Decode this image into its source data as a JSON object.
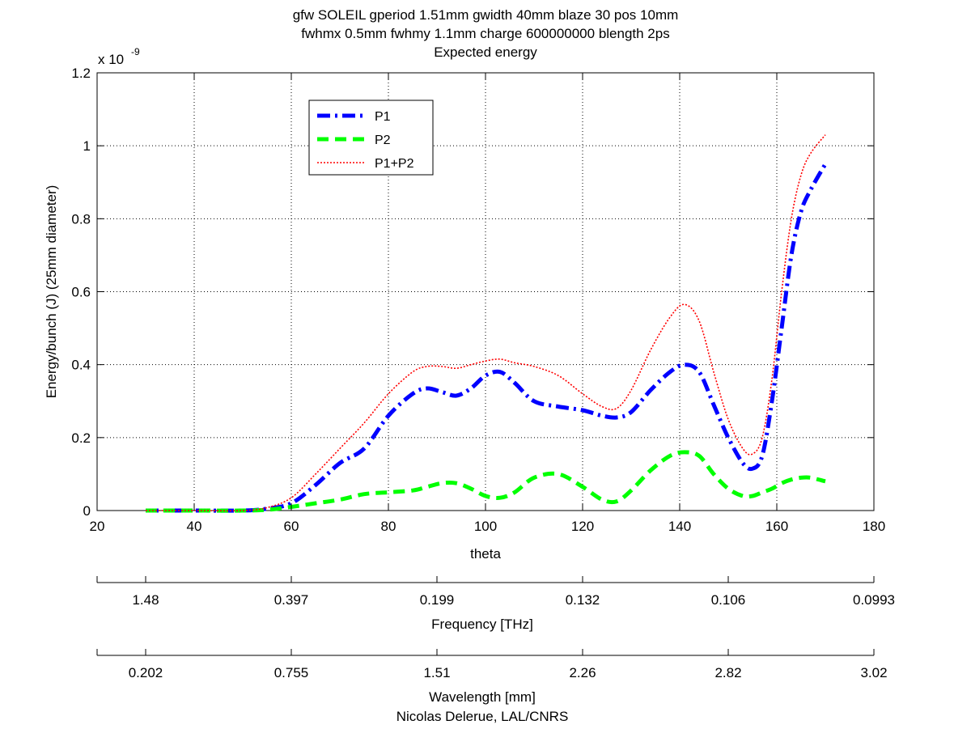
{
  "chart_data": {
    "type": "line",
    "title": [
      "gfw SOLEIL gperiod 1.51mm gwidth 40mm blaze 30 pos 10mm",
      "fwhmx 0.5mm fwhmy 1.1mm charge 600000000 blength 2ps",
      "Expected energy"
    ],
    "xlabel": "theta",
    "ylabel": "Energy/bunch (J) (25mm diameter)",
    "y_exponent_label": "x 10",
    "y_exponent": "-9",
    "xlim": [
      20,
      180
    ],
    "ylim": [
      0,
      1.2
    ],
    "xticks": [
      20,
      40,
      60,
      80,
      100,
      120,
      140,
      160,
      180
    ],
    "xtick_labels": [
      "20",
      "40",
      "60",
      "80",
      "100",
      "120",
      "140",
      "160",
      "180"
    ],
    "yticks": [
      0,
      0.2,
      0.4,
      0.6,
      0.8,
      1.0,
      1.2
    ],
    "ytick_labels": [
      "0",
      "0.2",
      "0.4",
      "0.6",
      "0.8",
      "1",
      "1.2"
    ],
    "grid": true,
    "legend_position": "upper-left",
    "x": [
      30,
      40,
      50,
      55,
      60,
      65,
      70,
      75,
      80,
      85,
      88,
      91,
      94,
      97,
      100,
      103,
      106,
      110,
      115,
      120,
      124,
      127,
      130,
      134,
      138,
      141,
      144,
      147,
      150,
      153,
      155,
      157,
      159,
      161,
      163,
      165,
      167,
      170
    ],
    "series": [
      {
        "name": "P1",
        "style": "dashdot",
        "color": "#0000ff",
        "values": [
          0,
          0,
          0,
          0.005,
          0.02,
          0.07,
          0.13,
          0.17,
          0.26,
          0.32,
          0.335,
          0.325,
          0.315,
          0.335,
          0.37,
          0.38,
          0.35,
          0.3,
          0.285,
          0.275,
          0.26,
          0.255,
          0.27,
          0.33,
          0.38,
          0.4,
          0.38,
          0.29,
          0.2,
          0.13,
          0.115,
          0.15,
          0.3,
          0.5,
          0.7,
          0.82,
          0.88,
          0.95
        ]
      },
      {
        "name": "P2",
        "style": "dashed",
        "color": "#00ff00",
        "values": [
          0,
          0,
          0,
          0.002,
          0.01,
          0.02,
          0.03,
          0.045,
          0.05,
          0.055,
          0.065,
          0.075,
          0.075,
          0.06,
          0.04,
          0.035,
          0.05,
          0.09,
          0.1,
          0.065,
          0.03,
          0.025,
          0.055,
          0.11,
          0.15,
          0.16,
          0.15,
          0.1,
          0.06,
          0.04,
          0.04,
          0.05,
          0.06,
          0.075,
          0.085,
          0.09,
          0.09,
          0.08
        ]
      },
      {
        "name": "P1+P2",
        "style": "dotted",
        "color": "#ff0000",
        "values": [
          0,
          0,
          0,
          0.008,
          0.035,
          0.1,
          0.17,
          0.24,
          0.32,
          0.38,
          0.395,
          0.395,
          0.39,
          0.4,
          0.41,
          0.415,
          0.405,
          0.395,
          0.37,
          0.32,
          0.285,
          0.28,
          0.33,
          0.44,
          0.53,
          0.565,
          0.52,
          0.38,
          0.25,
          0.17,
          0.155,
          0.2,
          0.36,
          0.6,
          0.8,
          0.92,
          0.98,
          1.03
        ]
      }
    ],
    "secondary_axes": [
      {
        "label": "Frequency [THz]",
        "tick_labels": [
          "1.48",
          "0.397",
          "0.199",
          "0.132",
          "0.106",
          "0.0993"
        ]
      },
      {
        "label": "Wavelength [mm]",
        "tick_labels": [
          "0.202",
          "0.755",
          "1.51",
          "2.26",
          "2.82",
          "3.02"
        ]
      }
    ],
    "footer": "Nicolas Delerue, LAL/CNRS"
  }
}
